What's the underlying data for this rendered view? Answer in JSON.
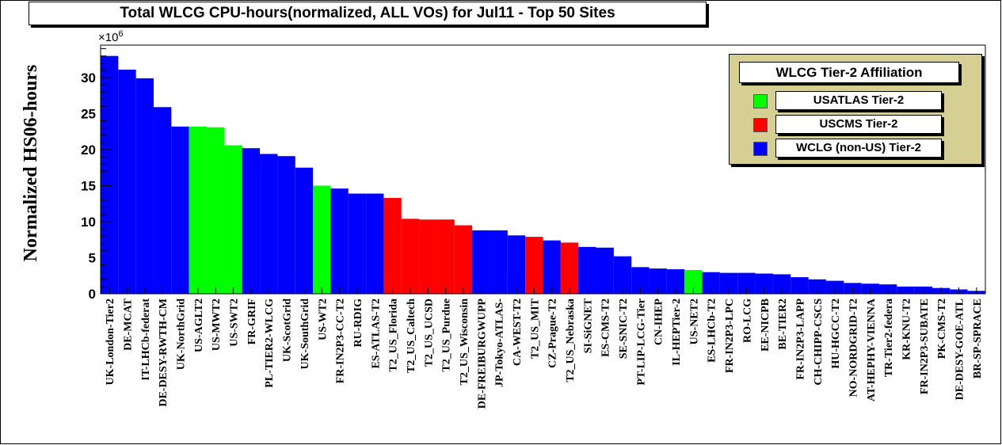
{
  "title": "Total WLCG CPU-hours(normalized, ALL VOs) for Jul11 - Top 50 Sites",
  "legend": {
    "title": "WLCG Tier-2 Affiliation",
    "entries": [
      {
        "label": "USATLAS Tier-2",
        "color": "#00ff00"
      },
      {
        "label": "USCMS Tier-2",
        "color": "#ff0000"
      },
      {
        "label": "WCLG (non-US) Tier-2",
        "color": "#0000ff"
      }
    ]
  },
  "colors": {
    "atlas": "#00ff00",
    "cms": "#ff0000",
    "other": "#0000ff"
  },
  "chart_data": {
    "type": "bar",
    "title": "Total WLCG CPU-hours(normalized, ALL VOs) for Jul11 - Top 50 Sites",
    "xlabel": "",
    "ylabel": "Normalized HS06-hours",
    "y_multiplier_label": "×10",
    "y_multiplier_exp": "6",
    "ylim": [
      0,
      34.5
    ],
    "yticks": [
      0,
      5,
      10,
      15,
      20,
      25,
      30
    ],
    "grid": false,
    "legend_position": "top-right",
    "categories": [
      "UK-London-Tier2",
      "DE-MCAT",
      "IT-LHCb-federat",
      "DE-DESY-RWTH-CM",
      "UK-NorthGrid",
      "US-AGLT2",
      "US-MWT2",
      "US-SWT2",
      "FR-GRIF",
      "PL-TIER2-WLCG",
      "UK-ScotGrid",
      "UK-SouthGrid",
      "US-WT2",
      "FR-IN2P3-CC-T2",
      "RU-RDIG",
      "ES-ATLAS-T2",
      "T2_US_Florida",
      "T2_US_Caltech",
      "T2_US_UCSD",
      "T2_US_Purdue",
      "T2_US_Wisconsin",
      "DE-FREIBURGWUPP",
      "JP-Tokyo-ATLAS-",
      "CA-WEST-T2",
      "T2_US_MIT",
      "CZ-Prague-T2",
      "T2_US_Nebraska",
      "SI-SiGNET",
      "ES-CMS-T2",
      "SE-SNIC-T2",
      "PT-LIP-LCG-Tier",
      "CN-IHEP",
      "IL-HEPTier-2",
      "US-NET2",
      "ES-LHCb-T2",
      "FR-IN2P3-LPC",
      "RO-LCG",
      "EE-NICPB",
      "BE-TIER2",
      "FR-IN2P3-LAPP",
      "CH-CHIPP-CSCS",
      "HU-HGCC-T2",
      "NO-NORDGRID-T2",
      "AT-HEPHY-VIENNA",
      "TR-Tier2-federa",
      "KR-KNU-T2",
      "FR-IN2P3-SUBATE",
      "PK-CMS-T2",
      "DE-DESY-GOE-ATL",
      "BR-SP-SPRACE"
    ],
    "values": [
      33.0,
      31.1,
      29.9,
      25.9,
      23.2,
      23.2,
      23.1,
      20.6,
      20.2,
      19.4,
      19.1,
      17.5,
      15.0,
      14.6,
      13.9,
      13.9,
      13.3,
      10.4,
      10.3,
      10.3,
      9.5,
      8.8,
      8.8,
      8.1,
      7.9,
      7.4,
      7.1,
      6.5,
      6.4,
      5.2,
      3.7,
      3.5,
      3.4,
      3.3,
      3.0,
      2.9,
      2.9,
      2.8,
      2.7,
      2.3,
      2.0,
      1.8,
      1.5,
      1.4,
      1.3,
      1.0,
      1.0,
      0.8,
      0.6,
      0.4
    ],
    "affiliation": [
      "other",
      "other",
      "other",
      "other",
      "other",
      "atlas",
      "atlas",
      "atlas",
      "other",
      "other",
      "other",
      "other",
      "atlas",
      "other",
      "other",
      "other",
      "cms",
      "cms",
      "cms",
      "cms",
      "cms",
      "other",
      "other",
      "other",
      "cms",
      "other",
      "cms",
      "other",
      "other",
      "other",
      "other",
      "other",
      "other",
      "atlas",
      "other",
      "other",
      "other",
      "other",
      "other",
      "other",
      "other",
      "other",
      "other",
      "other",
      "other",
      "other",
      "other",
      "other",
      "other",
      "other"
    ]
  }
}
